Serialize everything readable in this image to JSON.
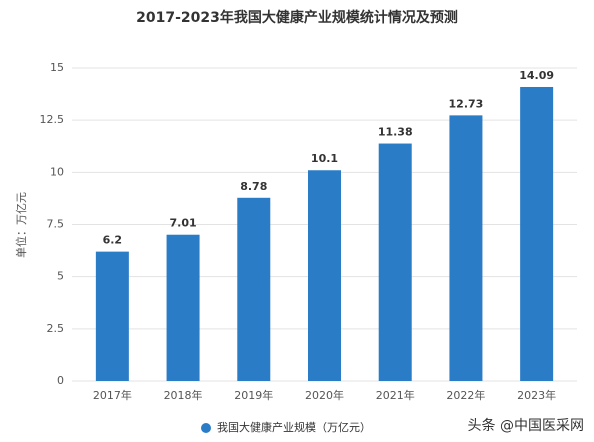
{
  "chart_data": {
    "type": "bar",
    "title": "2017-2023年我国大健康产业规模统计情况及预测",
    "y_label": "单位：万亿元",
    "categories": [
      "2017年",
      "2018年",
      "2019年",
      "2020年",
      "2021年",
      "2022年",
      "2023年"
    ],
    "series": [
      {
        "name": "我国大健康产业规模（万亿元）",
        "color": "#2a7cc6",
        "values": [
          6.2,
          7.01,
          8.78,
          10.1,
          11.38,
          12.73,
          14.09
        ]
      }
    ],
    "ylim": [
      0,
      15
    ],
    "yticks": [
      0,
      2.5,
      5,
      7.5,
      10,
      12.5,
      15
    ],
    "grid": true,
    "legend": "bottom",
    "watermark": "头条 @中国医采网"
  }
}
